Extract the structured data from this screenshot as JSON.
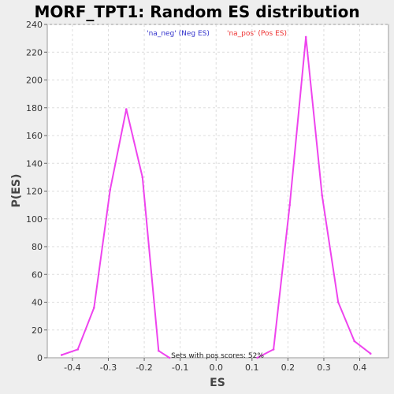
{
  "chart_data": {
    "type": "line",
    "title": "MORF_TPT1: Random ES distribution",
    "xlabel": "ES",
    "ylabel": "P(ES)",
    "xlim": [
      -0.47,
      0.48
    ],
    "ylim": [
      0,
      240
    ],
    "x_ticks": [
      -0.4,
      -0.3,
      -0.2,
      -0.1,
      0.0,
      0.1,
      0.2,
      0.3,
      0.4
    ],
    "x_tick_labels": [
      "-0.4",
      "-0.3",
      "-0.2",
      "-0.1",
      "0.0",
      "0.1",
      "0.2",
      "0.3",
      "0.4"
    ],
    "y_ticks": [
      0,
      20,
      40,
      60,
      80,
      100,
      120,
      140,
      160,
      180,
      200,
      220,
      240
    ],
    "grid": true,
    "legend_position": "top-center",
    "series": [
      {
        "name": "'na_neg' (Neg ES)",
        "color": "#3333cc",
        "x": [
          -0.43,
          -0.385,
          -0.34,
          -0.295,
          -0.25,
          -0.205,
          -0.16,
          -0.13
        ],
        "y": [
          2,
          6,
          36,
          121,
          179,
          130,
          5,
          0
        ]
      },
      {
        "name": "'na_pos' (Pos ES)",
        "color": "#ee3333",
        "x": [
          0.115,
          0.16,
          0.205,
          0.25,
          0.295,
          0.34,
          0.385,
          0.43
        ],
        "y": [
          0,
          6,
          110,
          231,
          117,
          40,
          12,
          3
        ]
      }
    ],
    "line_color": "#ee44ee",
    "annotation": "Sets with pos scores: 52%"
  }
}
